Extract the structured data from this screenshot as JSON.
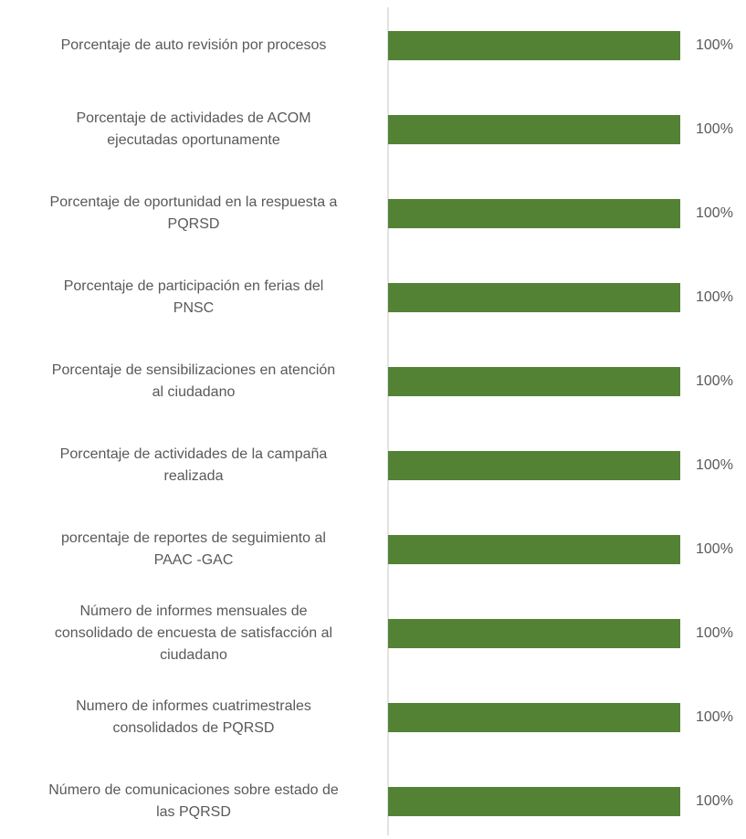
{
  "chart_data": {
    "type": "barh",
    "categories": [
      "Porcentaje de auto revisión por procesos",
      "Porcentaje de actividades de ACOM\nejecutadas oportunamente",
      "Porcentaje de oportunidad en la respuesta a\nPQRSD",
      "Porcentaje de participación en ferias del\nPNSC",
      "Porcentaje de sensibilizaciones en atención\nal ciudadano",
      "Porcentaje de actividades de la campaña\nrealizada",
      "porcentaje de reportes de seguimiento al\nPAAC -GAC",
      "Número de informes mensuales de\nconsolidado de encuesta de satisfacción al\nciudadano",
      "Numero de informes cuatrimestrales\nconsolidados de PQRSD",
      "Número de comunicaciones sobre estado de\nlas PQRSD"
    ],
    "values": [
      100,
      100,
      100,
      100,
      100,
      100,
      100,
      100,
      100,
      100
    ],
    "value_labels": [
      "100%",
      "100%",
      "100%",
      "100%",
      "100%",
      "100%",
      "100%",
      "100%",
      "100%",
      "100%"
    ],
    "color": "#548235",
    "xlim": [
      0,
      100
    ]
  }
}
